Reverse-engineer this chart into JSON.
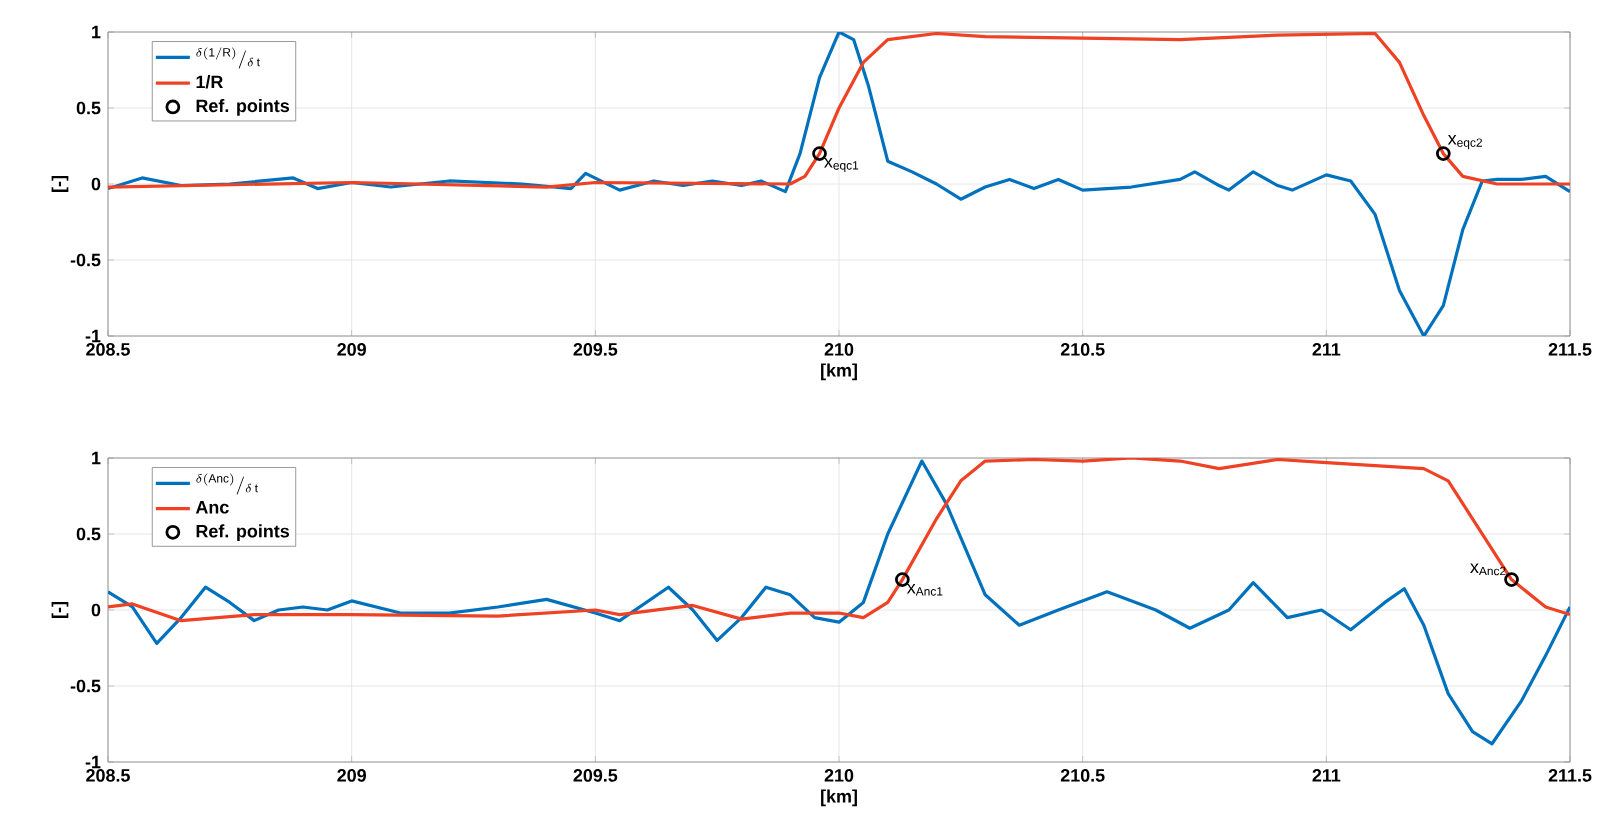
{
  "chart_data": [
    {
      "type": "line",
      "xlabel": "[km]",
      "ylabel": "[-]",
      "xlim": [
        208.5,
        211.5
      ],
      "ylim": [
        -1,
        1
      ],
      "xticks": [
        208.5,
        209,
        209.5,
        210,
        210.5,
        211,
        211.5
      ],
      "yticks": [
        -1,
        -0.5,
        0,
        0.5,
        1
      ],
      "grid": true,
      "legend": "top left",
      "line_style": "solid",
      "series": [
        {
          "name": "{}^{\\delta(\\mathrm{1/R})}/_{\\delta\\,\\mathrm{t}}",
          "color": "#0072bd",
          "marker": "none",
          "x": [
            208.5,
            208.57,
            208.65,
            208.75,
            208.88,
            208.93,
            209.0,
            209.08,
            209.2,
            209.35,
            209.45,
            209.48,
            209.55,
            209.62,
            209.68,
            209.74,
            209.8,
            209.84,
            209.89,
            209.92,
            209.96,
            210.0,
            210.03,
            210.06,
            210.1,
            210.15,
            210.2,
            210.25,
            210.3,
            210.35,
            210.4,
            210.45,
            210.5,
            210.6,
            210.7,
            210.73,
            210.78,
            210.8,
            210.85,
            210.9,
            210.93,
            211.0,
            211.05,
            211.1,
            211.15,
            211.2,
            211.24,
            211.28,
            211.32,
            211.35,
            211.4,
            211.45,
            211.5
          ],
          "values": [
            -0.03,
            0.04,
            -0.01,
            0.0,
            0.04,
            -0.03,
            0.01,
            -0.02,
            0.02,
            0.0,
            -0.03,
            0.07,
            -0.04,
            0.02,
            -0.01,
            0.02,
            -0.01,
            0.02,
            -0.05,
            0.2,
            0.7,
            1.0,
            0.95,
            0.65,
            0.15,
            0.08,
            0.0,
            -0.1,
            -0.02,
            0.03,
            -0.03,
            0.03,
            -0.04,
            -0.02,
            0.03,
            0.08,
            -0.01,
            -0.04,
            0.08,
            -0.01,
            -0.04,
            0.06,
            0.02,
            -0.2,
            -0.7,
            -1.0,
            -0.8,
            -0.3,
            0.02,
            0.03,
            0.03,
            0.05,
            -0.05
          ]
        },
        {
          "name": "1/R",
          "color": "#ef4123",
          "marker": "none",
          "x": [
            208.5,
            209.0,
            209.4,
            209.5,
            209.9,
            209.93,
            209.96,
            210.0,
            210.05,
            210.1,
            210.2,
            210.3,
            210.5,
            210.7,
            210.9,
            211.1,
            211.15,
            211.2,
            211.24,
            211.28,
            211.35,
            211.5
          ],
          "values": [
            -0.02,
            0.01,
            -0.02,
            0.01,
            0.0,
            0.05,
            0.2,
            0.5,
            0.8,
            0.95,
            0.99,
            0.97,
            0.96,
            0.95,
            0.98,
            0.99,
            0.8,
            0.45,
            0.2,
            0.05,
            0.0,
            0.0
          ]
        },
        {
          "name": "Ref. points",
          "type": "scatter",
          "color": "#000000",
          "marker": "circle",
          "x": [
            209.96,
            211.24
          ],
          "values": [
            0.2,
            0.2
          ]
        }
      ],
      "annotations": [
        {
          "text": "x$_{eqc1}$",
          "x": 209.96,
          "y": 0.2
        },
        {
          "text": "x$_{eqc2}$",
          "x": 211.24,
          "y": 0.2
        }
      ]
    },
    {
      "type": "line",
      "xlabel": "[km]",
      "ylabel": "[-]",
      "xlim": [
        208.5,
        211.5
      ],
      "ylim": [
        -1,
        1
      ],
      "xticks": [
        208.5,
        209,
        209.5,
        210,
        210.5,
        211,
        211.5
      ],
      "yticks": [
        -1,
        -0.5,
        0,
        0.5,
        1
      ],
      "grid": true,
      "legend": "top left",
      "line_style": "solid",
      "series": [
        {
          "name": "{}^{\\delta(\\mathrm{Anc})}/_{\\delta\\,\\mathrm{t}}",
          "color": "#0072bd",
          "marker": "none",
          "x": [
            208.5,
            208.55,
            208.6,
            208.65,
            208.7,
            208.75,
            208.8,
            208.85,
            208.9,
            208.95,
            209.0,
            209.1,
            209.2,
            209.3,
            209.4,
            209.5,
            209.55,
            209.65,
            209.7,
            209.75,
            209.8,
            209.85,
            209.9,
            209.95,
            210.0,
            210.05,
            210.1,
            210.17,
            210.22,
            210.3,
            210.37,
            210.45,
            210.55,
            210.65,
            210.72,
            210.8,
            210.85,
            210.92,
            210.99,
            211.05,
            211.12,
            211.16,
            211.2,
            211.25,
            211.3,
            211.34,
            211.4,
            211.45,
            211.5
          ],
          "values": [
            0.12,
            0.02,
            -0.22,
            -0.05,
            0.15,
            0.05,
            -0.07,
            0.0,
            0.02,
            0.0,
            0.06,
            -0.02,
            -0.02,
            0.02,
            0.07,
            -0.02,
            -0.07,
            0.15,
            0.0,
            -0.2,
            -0.05,
            0.15,
            0.1,
            -0.05,
            -0.08,
            0.05,
            0.5,
            0.98,
            0.7,
            0.1,
            -0.1,
            0.0,
            0.12,
            0.0,
            -0.12,
            0.0,
            0.18,
            -0.05,
            0.0,
            -0.13,
            0.05,
            0.14,
            -0.1,
            -0.55,
            -0.8,
            -0.88,
            -0.6,
            -0.3,
            0.02
          ]
        },
        {
          "name": "Anc",
          "color": "#ef4123",
          "marker": "none",
          "x": [
            208.5,
            208.55,
            208.65,
            208.8,
            209.0,
            209.3,
            209.5,
            209.55,
            209.7,
            209.8,
            209.9,
            210.0,
            210.05,
            210.1,
            210.13,
            210.2,
            210.25,
            210.3,
            210.4,
            210.5,
            210.6,
            210.7,
            210.78,
            210.9,
            211.0,
            211.1,
            211.2,
            211.25,
            211.3,
            211.38,
            211.45,
            211.5
          ],
          "values": [
            0.02,
            0.04,
            -0.07,
            -0.03,
            -0.03,
            -0.04,
            0.0,
            -0.03,
            0.03,
            -0.06,
            -0.02,
            -0.02,
            -0.05,
            0.05,
            0.2,
            0.6,
            0.85,
            0.98,
            0.99,
            0.98,
            1.0,
            0.98,
            0.93,
            0.99,
            0.97,
            0.95,
            0.93,
            0.85,
            0.6,
            0.2,
            0.02,
            -0.03
          ]
        },
        {
          "name": "Ref. points",
          "type": "scatter",
          "color": "#000000",
          "marker": "circle",
          "x": [
            210.13,
            211.38
          ],
          "values": [
            0.2,
            0.2
          ]
        }
      ],
      "annotations": [
        {
          "text": "x$_{Anc1}$",
          "x": 210.13,
          "y": 0.2
        },
        {
          "text": "x$_{Anc2}$",
          "x": 211.38,
          "y": 0.2
        }
      ]
    }
  ]
}
